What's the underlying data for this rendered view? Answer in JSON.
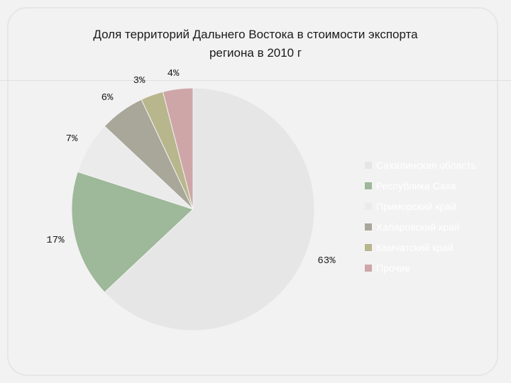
{
  "slide": {
    "title_line1": "Доля территорий Дальнего Востока в стоимости экспорта",
    "title_line2": "региона в 2010 г"
  },
  "chart_data": {
    "type": "pie",
    "title": "Доля территорий Дальнего Востока в стоимости экспорта региона в 2010 г",
    "start_angle_deg": 0,
    "direction": "clockwise",
    "legend_position": "right",
    "slices": [
      {
        "label": "Сахалинская область",
        "value": 63,
        "display": "63%",
        "color": "#e6e6e6"
      },
      {
        "label": "Республика Саха",
        "value": 17,
        "display": "17%",
        "color": "#9eb89a"
      },
      {
        "label": "Приморский край",
        "value": 7,
        "display": "7%",
        "color": "#ebebeb"
      },
      {
        "label": "Хабаровский край",
        "value": 6,
        "display": "6%",
        "color": "#a8a79a"
      },
      {
        "label": "Камчатский край",
        "value": 3,
        "display": "3%",
        "color": "#b8b68c"
      },
      {
        "label": "Прочие",
        "value": 4,
        "display": "4%",
        "color": "#cfa6a8"
      }
    ]
  }
}
